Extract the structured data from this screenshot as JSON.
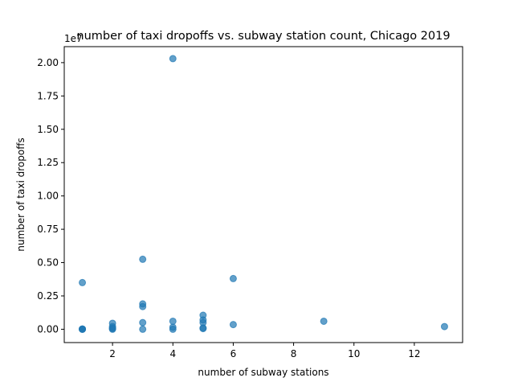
{
  "chart_data": {
    "type": "scatter",
    "title": "number of taxi dropoffs vs. subway station count, Chicago 2019",
    "xlabel": "number of subway stations",
    "ylabel": "number of taxi dropoffs",
    "y_offset_label": "1e7",
    "xlim": [
      0.4,
      13.6
    ],
    "ylim": [
      -0.1,
      2.12
    ],
    "x_ticks": [
      2,
      4,
      6,
      8,
      10,
      12
    ],
    "y_ticks": [
      0.0,
      0.25,
      0.5,
      0.75,
      1.0,
      1.25,
      1.5,
      1.75,
      2.0
    ],
    "x_tick_labels": [
      "2",
      "4",
      "6",
      "8",
      "10",
      "12"
    ],
    "y_tick_labels": [
      "0.00",
      "0.25",
      "0.50",
      "0.75",
      "1.00",
      "1.25",
      "1.50",
      "1.75",
      "2.00"
    ],
    "y_scale_note": "values in units of 1e7",
    "grid": false,
    "point_color": "#1f77b4",
    "point_alpha": 0.7,
    "points": [
      {
        "x": 1,
        "y": 0.0
      },
      {
        "x": 1,
        "y": 0.001
      },
      {
        "x": 1,
        "y": 0.002
      },
      {
        "x": 1,
        "y": 0.0005
      },
      {
        "x": 1,
        "y": 0.35
      },
      {
        "x": 2,
        "y": 0.0
      },
      {
        "x": 2,
        "y": 0.005
      },
      {
        "x": 2,
        "y": 0.01
      },
      {
        "x": 2,
        "y": 0.02
      },
      {
        "x": 2,
        "y": 0.045
      },
      {
        "x": 3,
        "y": 0.0
      },
      {
        "x": 3,
        "y": 0.05
      },
      {
        "x": 3,
        "y": 0.17
      },
      {
        "x": 3,
        "y": 0.19
      },
      {
        "x": 3,
        "y": 0.525
      },
      {
        "x": 4,
        "y": 0.0
      },
      {
        "x": 4,
        "y": 0.015
      },
      {
        "x": 4,
        "y": 0.06
      },
      {
        "x": 4,
        "y": 2.03
      },
      {
        "x": 5,
        "y": 0.005
      },
      {
        "x": 5,
        "y": 0.01
      },
      {
        "x": 5,
        "y": 0.05
      },
      {
        "x": 5,
        "y": 0.07
      },
      {
        "x": 5,
        "y": 0.105
      },
      {
        "x": 6,
        "y": 0.035
      },
      {
        "x": 6,
        "y": 0.38
      },
      {
        "x": 9,
        "y": 0.06
      },
      {
        "x": 13,
        "y": 0.02
      }
    ]
  }
}
